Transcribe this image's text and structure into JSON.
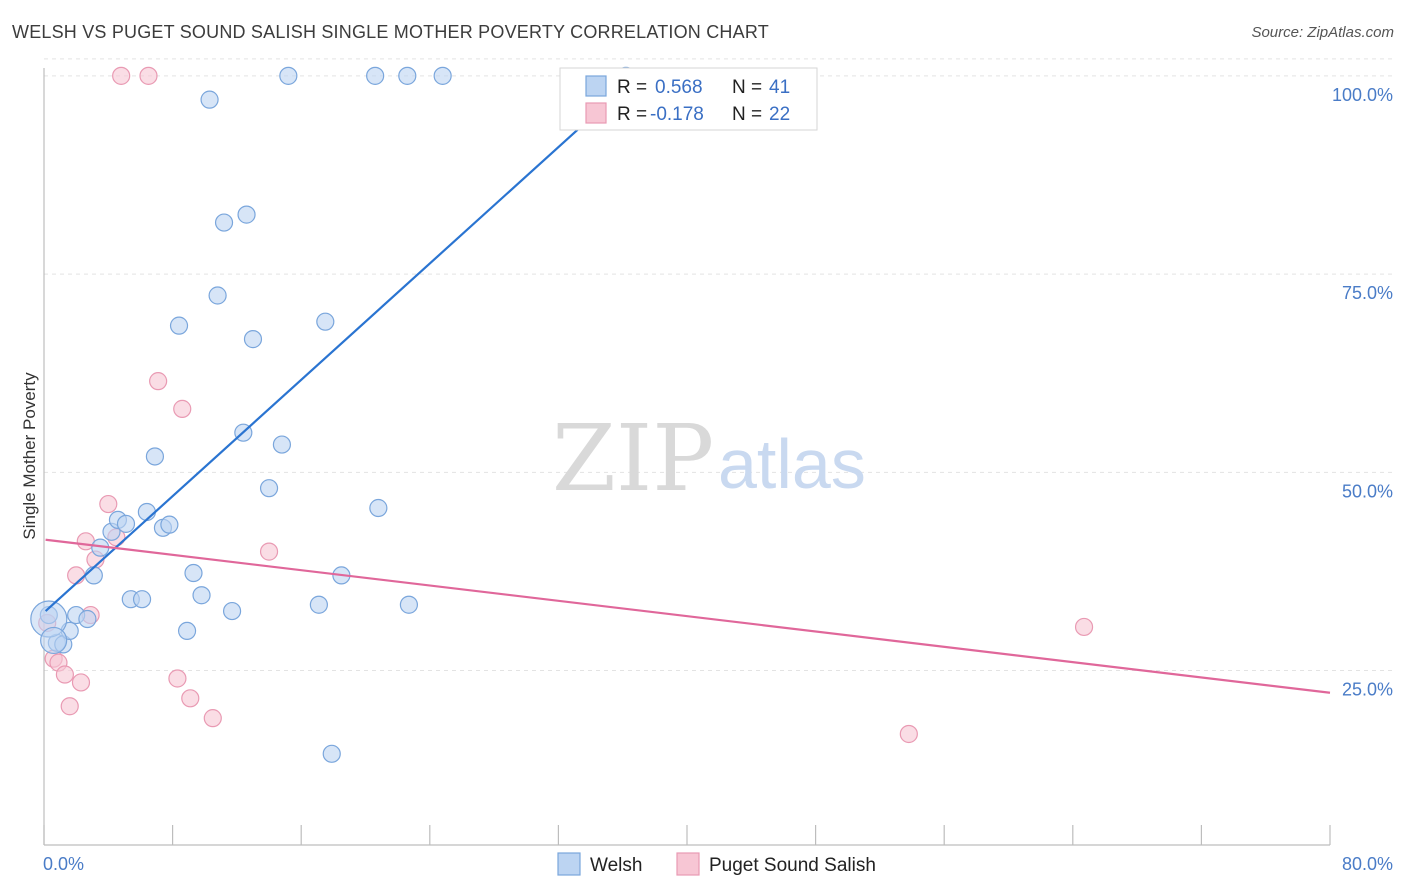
{
  "header": {
    "title": "WELSH VS PUGET SOUND SALISH SINGLE MOTHER POVERTY CORRELATION CHART",
    "source": "Source: ZipAtlas.com"
  },
  "watermark": {
    "zip": "ZIP",
    "atlas": "atlas"
  },
  "colors": {
    "welsh_fill": "#bcd4f2",
    "welsh_stroke": "#7aa6dc",
    "welsh_line": "#2a74d1",
    "salish_fill": "#f7c6d4",
    "salish_stroke": "#e99ab3",
    "salish_line": "#e0679a"
  },
  "chart_data": {
    "type": "scatter",
    "title": "WELSH VS PUGET SOUND SALISH SINGLE MOTHER POVERTY CORRELATION CHART",
    "xlabel": "",
    "ylabel": "Single Mother Poverty",
    "xlim": [
      0,
      80
    ],
    "ylim": [
      3,
      102
    ],
    "x_tick_labels": [
      "0.0%",
      "80.0%"
    ],
    "y_ticks": [
      25,
      50,
      75,
      100
    ],
    "y_tick_labels": [
      "25.0%",
      "50.0%",
      "75.0%",
      "100.0%"
    ],
    "grid": true,
    "legend_position": "bottom-center",
    "stats_box": {
      "rows": [
        {
          "r_label": "R = ",
          "r_value": "0.568",
          "n_label": "N = ",
          "n_value": "41"
        },
        {
          "r_label": "R = ",
          "r_value": "-0.178",
          "n_label": "N = ",
          "n_value": "22"
        }
      ]
    },
    "series": [
      {
        "name": "Welsh",
        "trend": {
          "x": [
            0.1,
            36.9
          ],
          "y": [
            32.5,
            100.0
          ]
        },
        "points": [
          [
            0.3,
            32.0
          ],
          [
            0.8,
            28.5
          ],
          [
            1.2,
            28.3
          ],
          [
            1.6,
            30.0
          ],
          [
            2.0,
            32.0
          ],
          [
            2.7,
            31.5
          ],
          [
            3.1,
            37.0
          ],
          [
            3.5,
            40.5
          ],
          [
            4.2,
            42.5
          ],
          [
            4.6,
            44.0
          ],
          [
            5.1,
            43.5
          ],
          [
            5.4,
            34.0
          ],
          [
            6.1,
            34.0
          ],
          [
            6.4,
            45.0
          ],
          [
            6.9,
            52.0
          ],
          [
            7.4,
            43.0
          ],
          [
            7.8,
            43.4
          ],
          [
            8.4,
            68.5
          ],
          [
            8.9,
            30.0
          ],
          [
            9.3,
            37.3
          ],
          [
            9.8,
            34.5
          ],
          [
            10.3,
            97.0
          ],
          [
            10.8,
            72.3
          ],
          [
            11.2,
            81.5
          ],
          [
            11.7,
            32.5
          ],
          [
            12.4,
            55.0
          ],
          [
            12.6,
            82.5
          ],
          [
            13.0,
            66.8
          ],
          [
            14.0,
            48.0
          ],
          [
            14.8,
            53.5
          ],
          [
            15.2,
            100.0
          ],
          [
            17.5,
            69.0
          ],
          [
            17.1,
            33.3
          ],
          [
            17.9,
            14.5
          ],
          [
            18.5,
            37.0
          ],
          [
            20.6,
            100.0
          ],
          [
            20.8,
            45.5
          ],
          [
            22.6,
            100.0
          ],
          [
            22.7,
            33.3
          ],
          [
            24.8,
            100.0
          ],
          [
            36.2,
            100.0
          ]
        ]
      },
      {
        "name": "Puget Sound Salish",
        "trend": {
          "x": [
            0.1,
            80.0
          ],
          "y": [
            41.5,
            22.2
          ]
        },
        "points": [
          [
            0.2,
            31.0
          ],
          [
            0.6,
            26.5
          ],
          [
            0.9,
            26.0
          ],
          [
            1.3,
            24.5
          ],
          [
            1.6,
            20.5
          ],
          [
            2.0,
            37.0
          ],
          [
            2.3,
            23.5
          ],
          [
            2.6,
            41.3
          ],
          [
            2.9,
            32.0
          ],
          [
            3.2,
            39.0
          ],
          [
            4.0,
            46.0
          ],
          [
            4.5,
            41.8
          ],
          [
            4.8,
            100.0
          ],
          [
            6.5,
            100.0
          ],
          [
            7.1,
            61.5
          ],
          [
            8.3,
            24.0
          ],
          [
            8.6,
            58.0
          ],
          [
            9.1,
            21.5
          ],
          [
            10.5,
            19.0
          ],
          [
            14.0,
            40.0
          ],
          [
            53.8,
            17.0
          ],
          [
            64.7,
            30.5
          ]
        ]
      }
    ]
  },
  "legend": {
    "items": [
      "Welsh",
      "Puget Sound Salish"
    ]
  }
}
